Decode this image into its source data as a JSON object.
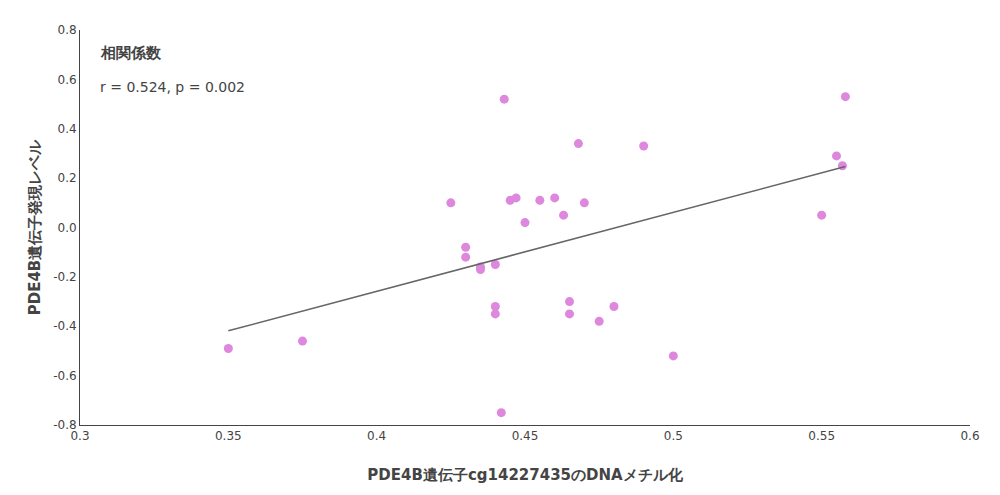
{
  "chart_data": {
    "type": "scatter",
    "xlabel": "PDE4B遺伝子cg14227435のDNAメチル化",
    "ylabel": "PDE4B遺伝子発現レベル",
    "annotations": [
      "相関係数",
      "r = 0.524, p = 0.002"
    ],
    "series": [
      {
        "type": "scatter",
        "color": "#dd88dd",
        "x": [
          0.35,
          0.375,
          0.425,
          0.43,
          0.43,
          0.435,
          0.435,
          0.44,
          0.44,
          0.44,
          0.442,
          0.443,
          0.445,
          0.447,
          0.45,
          0.455,
          0.46,
          0.463,
          0.465,
          0.465,
          0.468,
          0.47,
          0.475,
          0.48,
          0.49,
          0.5,
          0.55,
          0.555,
          0.557,
          0.558
        ],
        "values": [
          -0.49,
          -0.46,
          0.1,
          -0.08,
          -0.12,
          -0.16,
          -0.17,
          -0.15,
          -0.32,
          -0.35,
          -0.75,
          0.52,
          0.11,
          0.12,
          0.02,
          0.11,
          0.12,
          0.05,
          -0.3,
          -0.35,
          0.34,
          0.1,
          -0.38,
          -0.32,
          0.33,
          -0.52,
          0.05,
          0.29,
          0.25,
          0.53
        ]
      },
      {
        "type": "line",
        "color": "#666666",
        "x": [
          0.35,
          0.558
        ],
        "values": [
          -0.41856,
          0.24674
        ]
      }
    ],
    "xlim": [
      0.3,
      0.6
    ],
    "ylim": [
      -0.8,
      0.8
    ],
    "xticks": [
      0.3,
      0.35,
      0.4,
      0.45,
      0.5,
      0.55,
      0.6
    ],
    "yticks": [
      -0.8,
      -0.6,
      -0.4,
      -0.2,
      {
        "value": 0,
        "label": "0.0"
      },
      0.2,
      0.4,
      0.6,
      0.8
    ],
    "grid": false
  }
}
